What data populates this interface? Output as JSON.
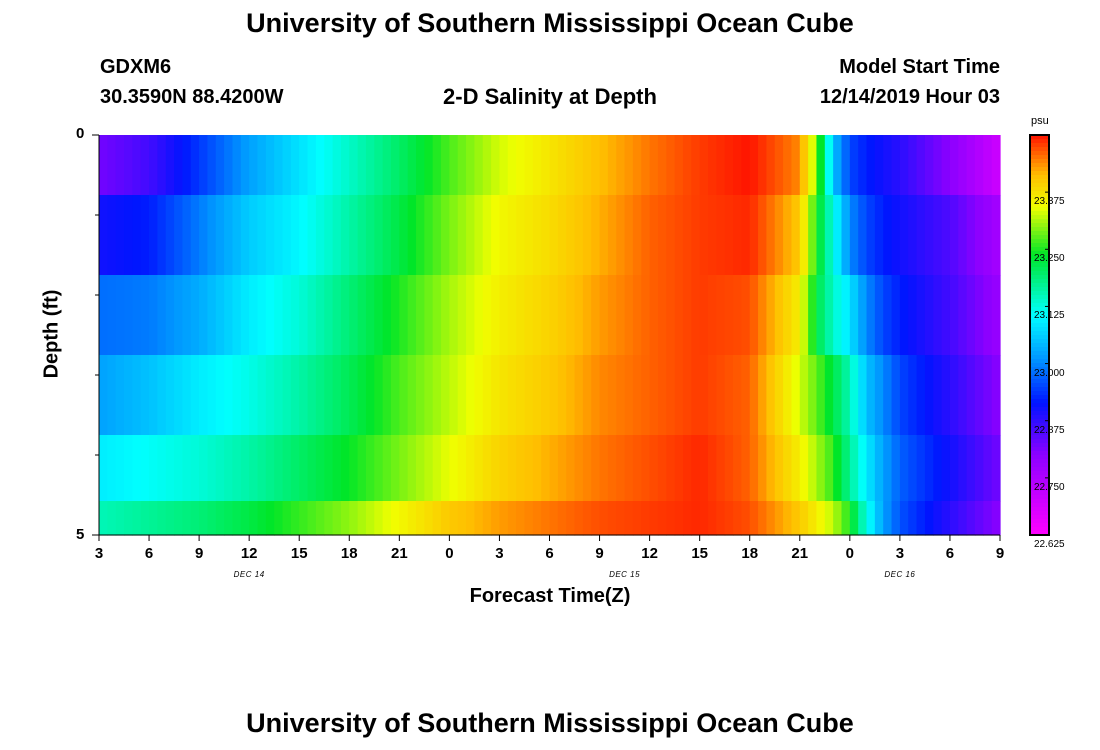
{
  "title_top": "University of Southern Mississippi Ocean Cube",
  "title_bottom": "University of Southern Mississippi Ocean Cube",
  "station": {
    "id": "GDXM6",
    "coords": "30.3590N 88.4200W"
  },
  "plot_title": "2-D Salinity at Depth",
  "model": {
    "label": "Model Start Time",
    "time": "12/14/2019 Hour 03"
  },
  "chart_data": {
    "type": "heatmap",
    "title": "2-D Salinity at Depth",
    "xlabel": "Forecast Time(Z)",
    "ylabel": "Depth (ft)",
    "units": "psu",
    "x_tick_labels": [
      "3",
      "6",
      "9",
      "12",
      "15",
      "18",
      "21",
      "0",
      "3",
      "6",
      "9",
      "12",
      "15",
      "18",
      "21",
      "0",
      "3",
      "6",
      "9"
    ],
    "day_labels": [
      {
        "label": "DEC 14",
        "at_tick": 3
      },
      {
        "label": "DEC 15",
        "at_tick": 10.5
      },
      {
        "label": "DEC 16",
        "at_tick": 16
      }
    ],
    "y_tick_labels": [
      "0",
      "5"
    ],
    "ylim": [
      0,
      5
    ],
    "x_hours_from_start": [
      0,
      54
    ],
    "depth_layers_ft": [
      0.25,
      1.25,
      2.25,
      3.25,
      4.25,
      4.9
    ],
    "colorbar": {
      "min": 22.625,
      "max": 23.5,
      "ticks": [
        "23.375",
        "23.250",
        "23.125",
        "23.000",
        "22.875",
        "22.750",
        "22.625"
      ]
    },
    "salinity_keyframes_psu": [
      {
        "hours": [
          0,
          3,
          6,
          9,
          12,
          15,
          18,
          21,
          24,
          27,
          30,
          33,
          36,
          39,
          42,
          43,
          44,
          45,
          46,
          47,
          48,
          51,
          54
        ],
        "values": [
          22.82,
          22.86,
          22.94,
          23.02,
          23.08,
          23.14,
          23.2,
          23.27,
          23.33,
          23.37,
          23.41,
          23.45,
          23.48,
          23.5,
          23.44,
          23.3,
          23.05,
          22.95,
          22.92,
          22.9,
          22.88,
          22.8,
          22.7
        ]
      },
      {
        "hours": [
          0,
          3,
          6,
          9,
          12,
          15,
          18,
          21,
          24,
          27,
          30,
          33,
          36,
          39,
          42,
          43,
          44,
          45,
          46,
          47,
          48,
          51,
          54
        ],
        "values": [
          22.9,
          22.92,
          22.99,
          23.06,
          23.1,
          23.16,
          23.22,
          23.29,
          23.35,
          23.38,
          23.42,
          23.46,
          23.48,
          23.49,
          23.4,
          23.25,
          23.12,
          23.0,
          22.95,
          22.92,
          22.9,
          22.85,
          22.76
        ]
      },
      {
        "hours": [
          0,
          3,
          6,
          9,
          12,
          15,
          18,
          21,
          24,
          27,
          30,
          33,
          36,
          39,
          42,
          43,
          44,
          45,
          46,
          47,
          48,
          51,
          54
        ],
        "values": [
          22.98,
          22.99,
          23.03,
          23.09,
          23.13,
          23.19,
          23.25,
          23.31,
          23.36,
          23.39,
          23.43,
          23.46,
          23.48,
          23.47,
          23.36,
          23.22,
          23.14,
          23.08,
          23.0,
          22.95,
          22.92,
          22.86,
          22.78
        ]
      },
      {
        "hours": [
          0,
          3,
          6,
          9,
          12,
          15,
          18,
          21,
          24,
          27,
          30,
          33,
          36,
          39,
          42,
          43,
          44,
          45,
          46,
          47,
          48,
          51,
          54
        ],
        "values": [
          23.02,
          23.05,
          23.09,
          23.12,
          23.16,
          23.21,
          23.27,
          23.32,
          23.37,
          23.4,
          23.44,
          23.46,
          23.48,
          23.46,
          23.33,
          23.28,
          23.22,
          23.15,
          23.05,
          23.0,
          22.95,
          22.88,
          22.8
        ]
      },
      {
        "hours": [
          0,
          3,
          6,
          9,
          12,
          15,
          18,
          21,
          24,
          27,
          30,
          33,
          36,
          39,
          42,
          43,
          44,
          45,
          46,
          47,
          48,
          51,
          54
        ],
        "values": [
          23.09,
          23.11,
          23.13,
          23.16,
          23.2,
          23.24,
          23.29,
          23.34,
          23.39,
          23.42,
          23.45,
          23.47,
          23.49,
          23.46,
          23.36,
          23.31,
          23.26,
          23.17,
          23.09,
          23.02,
          22.97,
          22.9,
          22.82
        ]
      },
      {
        "hours": [
          0,
          3,
          6,
          9,
          12,
          15,
          18,
          21,
          24,
          27,
          30,
          33,
          36,
          39,
          42,
          43,
          44,
          45,
          46,
          47,
          48,
          51,
          54
        ],
        "values": [
          23.15,
          23.17,
          23.19,
          23.22,
          23.26,
          23.3,
          23.35,
          23.4,
          23.43,
          23.45,
          23.47,
          23.48,
          23.49,
          23.47,
          23.4,
          23.36,
          23.32,
          23.25,
          23.12,
          23.02,
          22.96,
          22.88,
          22.8
        ]
      }
    ]
  }
}
